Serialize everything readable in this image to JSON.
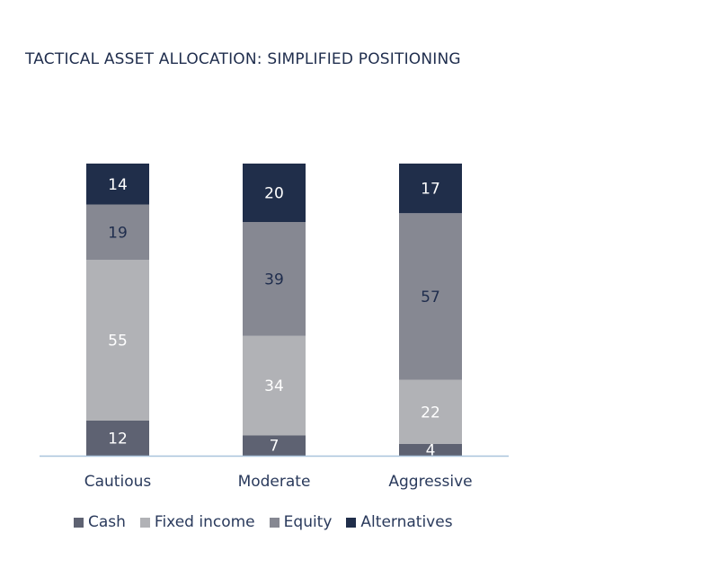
{
  "title": "TACTICAL ASSET ALLOCATION: SIMPLIFIED POSITIONING",
  "chart_data": {
    "type": "bar",
    "stacked": true,
    "categories": [
      "Cautious",
      "Moderate",
      "Aggressive"
    ],
    "series": [
      {
        "name": "Cash",
        "color": "#5e6272",
        "label_color": "#ffffff",
        "values": [
          12,
          7,
          4
        ]
      },
      {
        "name": "Fixed income",
        "color": "#b1b2b6",
        "label_color": "#ffffff",
        "values": [
          55,
          34,
          22
        ]
      },
      {
        "name": "Equity",
        "color": "#868892",
        "label_color": "#1f2d4d",
        "values": [
          19,
          39,
          57
        ]
      },
      {
        "name": "Alternatives",
        "color": "#202e4a",
        "label_color": "#ffffff",
        "values": [
          14,
          20,
          17
        ]
      }
    ],
    "ylim": [
      0,
      100
    ],
    "grid": false,
    "legend": "bottom"
  }
}
